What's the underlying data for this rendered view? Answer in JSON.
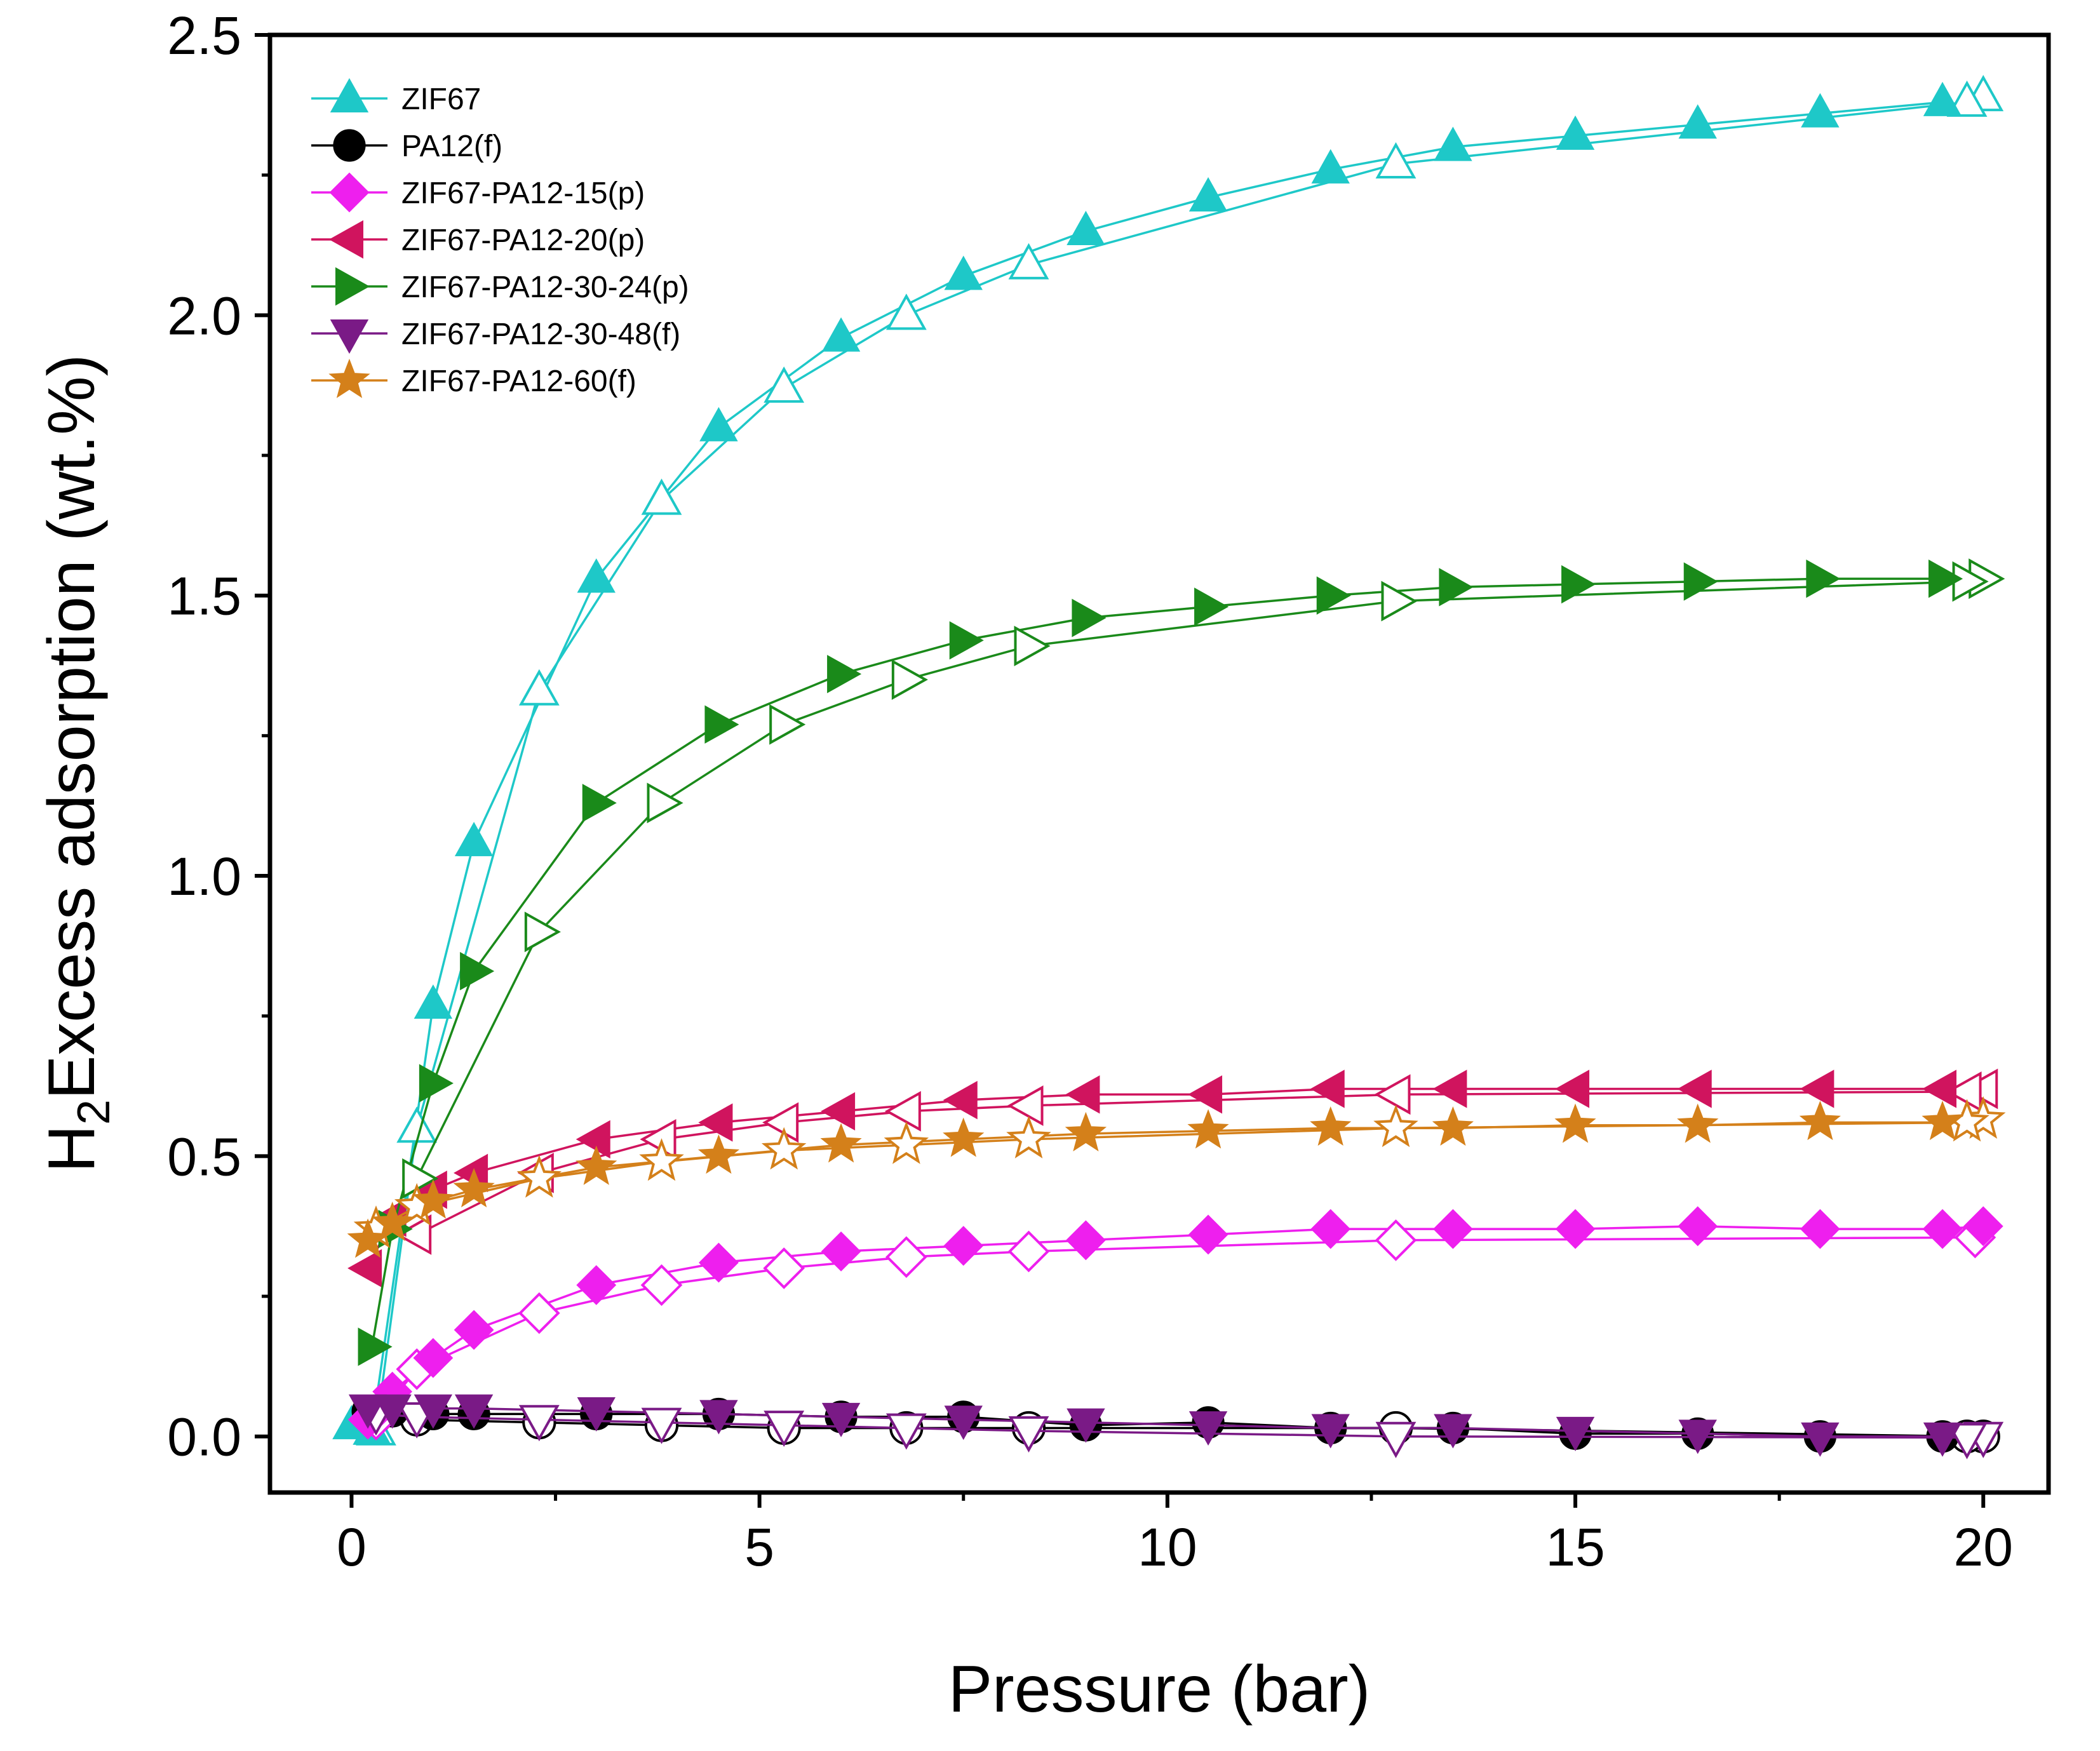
{
  "chart_data": {
    "type": "line",
    "title": "",
    "xlabel": "Pressure (bar)",
    "ylabel_main": "Excess adsorption (wt.%)",
    "ylabel_prefix": "H",
    "ylabel_subscript": "2",
    "xlim": [
      -1,
      20.8
    ],
    "ylim": [
      -0.1,
      2.5
    ],
    "xticks": [
      0,
      5,
      10,
      15,
      20
    ],
    "xtick_labels": [
      "0",
      "5",
      "10",
      "15",
      "20"
    ],
    "yticks": [
      0.0,
      0.5,
      1.0,
      1.5,
      2.0,
      2.5
    ],
    "ytick_labels": [
      "0.0",
      "0.5",
      "1.0",
      "1.5",
      "2.0",
      "2.5"
    ],
    "legend_position": "top-left",
    "notes": "Filled markers = adsorption branch, open markers = desorption branch",
    "series": [
      {
        "name": "ZIF67",
        "color": "#1ec8c8",
        "marker": "triangle-up",
        "adsorption": {
          "x": [
            0,
            0.25,
            1.0,
            1.5,
            3.0,
            4.5,
            6.0,
            7.5,
            9.0,
            10.5,
            12.0,
            13.5,
            15.0,
            16.5,
            18.0,
            19.5
          ],
          "y": [
            0.02,
            0.01,
            0.77,
            1.06,
            1.53,
            1.8,
            1.96,
            2.07,
            2.15,
            2.21,
            2.26,
            2.3,
            2.32,
            2.34,
            2.36,
            2.38
          ]
        },
        "desorption": {
          "x": [
            20.0,
            19.8,
            12.8,
            8.3,
            6.8,
            5.3,
            3.8,
            2.3,
            0.8,
            0.3
          ],
          "y": [
            2.39,
            2.38,
            2.27,
            2.09,
            2.0,
            1.87,
            1.67,
            1.33,
            0.55,
            0.01
          ]
        }
      },
      {
        "name": "PA12(f)",
        "color": "#000000",
        "marker": "circle",
        "adsorption": {
          "x": [
            0.2,
            0.5,
            1.0,
            1.5,
            3.0,
            4.5,
            6.0,
            7.5,
            9.0,
            10.5,
            12.0,
            13.5,
            15.0,
            16.5,
            18.0,
            19.5
          ],
          "y": [
            0.045,
            0.045,
            0.04,
            0.04,
            0.04,
            0.04,
            0.035,
            0.035,
            0.02,
            0.025,
            0.015,
            0.015,
            0.005,
            0.005,
            0.0,
            0.0
          ]
        },
        "desorption": {
          "x": [
            20.0,
            19.8,
            12.8,
            8.3,
            6.8,
            5.3,
            3.8,
            2.3,
            0.8,
            0.3
          ],
          "y": [
            0.0,
            0.0,
            0.015,
            0.015,
            0.015,
            0.015,
            0.02,
            0.025,
            0.03,
            0.035
          ]
        }
      },
      {
        "name": "ZIF67-PA12-15(p)",
        "color": "#ee1fee",
        "marker": "diamond",
        "adsorption": {
          "x": [
            0.2,
            0.5,
            1.0,
            1.5,
            3.0,
            4.5,
            6.0,
            7.5,
            9.0,
            10.5,
            12.0,
            13.5,
            15.0,
            16.5,
            18.0,
            19.5,
            20.0
          ],
          "y": [
            0.03,
            0.08,
            0.14,
            0.19,
            0.27,
            0.31,
            0.33,
            0.34,
            0.35,
            0.36,
            0.37,
            0.37,
            0.37,
            0.375,
            0.37,
            0.37,
            0.375
          ]
        },
        "desorption": {
          "x": [
            19.9,
            12.8,
            8.3,
            6.8,
            5.3,
            3.8,
            2.3,
            0.8,
            0.3
          ],
          "y": [
            0.355,
            0.35,
            0.33,
            0.32,
            0.3,
            0.27,
            0.22,
            0.12,
            0.03
          ]
        }
      },
      {
        "name": "ZIF67-PA12-20(p)",
        "color": "#d0145e",
        "marker": "triangle-left",
        "adsorption": {
          "x": [
            0.2,
            0.5,
            1.0,
            1.5,
            3.0,
            4.5,
            6.0,
            7.5,
            9.0,
            10.5,
            12.0,
            13.5,
            15.0,
            16.5,
            18.0,
            19.5
          ],
          "y": [
            0.3,
            0.39,
            0.44,
            0.47,
            0.53,
            0.56,
            0.58,
            0.6,
            0.61,
            0.61,
            0.62,
            0.62,
            0.62,
            0.62,
            0.62,
            0.62
          ]
        },
        "desorption": {
          "x": [
            20.0,
            19.8,
            12.8,
            8.3,
            6.8,
            5.3,
            3.8,
            2.3,
            0.8
          ],
          "y": [
            0.62,
            0.615,
            0.61,
            0.59,
            0.58,
            0.56,
            0.53,
            0.47,
            0.36
          ]
        }
      },
      {
        "name": "ZIF67-PA12-30-24(p)",
        "color": "#1a8a1a",
        "marker": "triangle-right",
        "adsorption": {
          "x": [
            0.25,
            0.5,
            1.0,
            1.5,
            3.0,
            4.5,
            6.0,
            7.5,
            9.0,
            10.5,
            12.0,
            13.5,
            15.0,
            16.5,
            18.0,
            19.5
          ],
          "y": [
            0.16,
            0.37,
            0.63,
            0.83,
            1.13,
            1.27,
            1.36,
            1.42,
            1.46,
            1.48,
            1.5,
            1.515,
            1.52,
            1.525,
            1.53,
            1.53
          ]
        },
        "desorption": {
          "x": [
            20.0,
            19.8,
            12.8,
            8.3,
            6.8,
            5.3,
            3.8,
            2.3,
            0.8
          ],
          "y": [
            1.53,
            1.525,
            1.49,
            1.41,
            1.35,
            1.27,
            1.13,
            0.9,
            0.46
          ]
        }
      },
      {
        "name": "ZIF67-PA12-30-48(f)",
        "color": "#7a1a86",
        "marker": "triangle-down",
        "adsorption": {
          "x": [
            0.2,
            0.5,
            1.0,
            1.5,
            3.0,
            4.5,
            6.0,
            7.5,
            9.0,
            10.5,
            12.0,
            13.5,
            15.0,
            16.5,
            18.0,
            19.5
          ],
          "y": [
            0.05,
            0.05,
            0.05,
            0.05,
            0.045,
            0.04,
            0.035,
            0.03,
            0.025,
            0.02,
            0.015,
            0.015,
            0.01,
            0.005,
            0.0,
            0.0
          ]
        },
        "desorption": {
          "x": [
            20.0,
            19.8,
            12.8,
            8.3,
            6.8,
            5.3,
            3.8,
            2.3,
            0.8,
            0.3
          ],
          "y": [
            0.0,
            -0.002,
            0.0,
            0.01,
            0.015,
            0.02,
            0.025,
            0.03,
            0.035,
            0.04
          ]
        }
      },
      {
        "name": "ZIF67-PA12-60(f)",
        "color": "#d4801a",
        "marker": "star",
        "adsorption": {
          "x": [
            0.2,
            0.5,
            1.0,
            1.5,
            3.0,
            4.5,
            6.0,
            7.5,
            9.0,
            10.5,
            12.0,
            13.5,
            15.0,
            16.5,
            18.0,
            19.5
          ],
          "y": [
            0.35,
            0.38,
            0.42,
            0.44,
            0.48,
            0.5,
            0.52,
            0.53,
            0.54,
            0.545,
            0.55,
            0.55,
            0.555,
            0.555,
            0.56,
            0.56
          ]
        },
        "desorption": {
          "x": [
            20.0,
            19.8,
            12.8,
            8.3,
            6.8,
            5.3,
            3.8,
            2.3,
            0.8,
            0.3
          ],
          "y": [
            0.565,
            0.56,
            0.55,
            0.53,
            0.52,
            0.51,
            0.49,
            0.46,
            0.41,
            0.37
          ]
        }
      }
    ]
  }
}
